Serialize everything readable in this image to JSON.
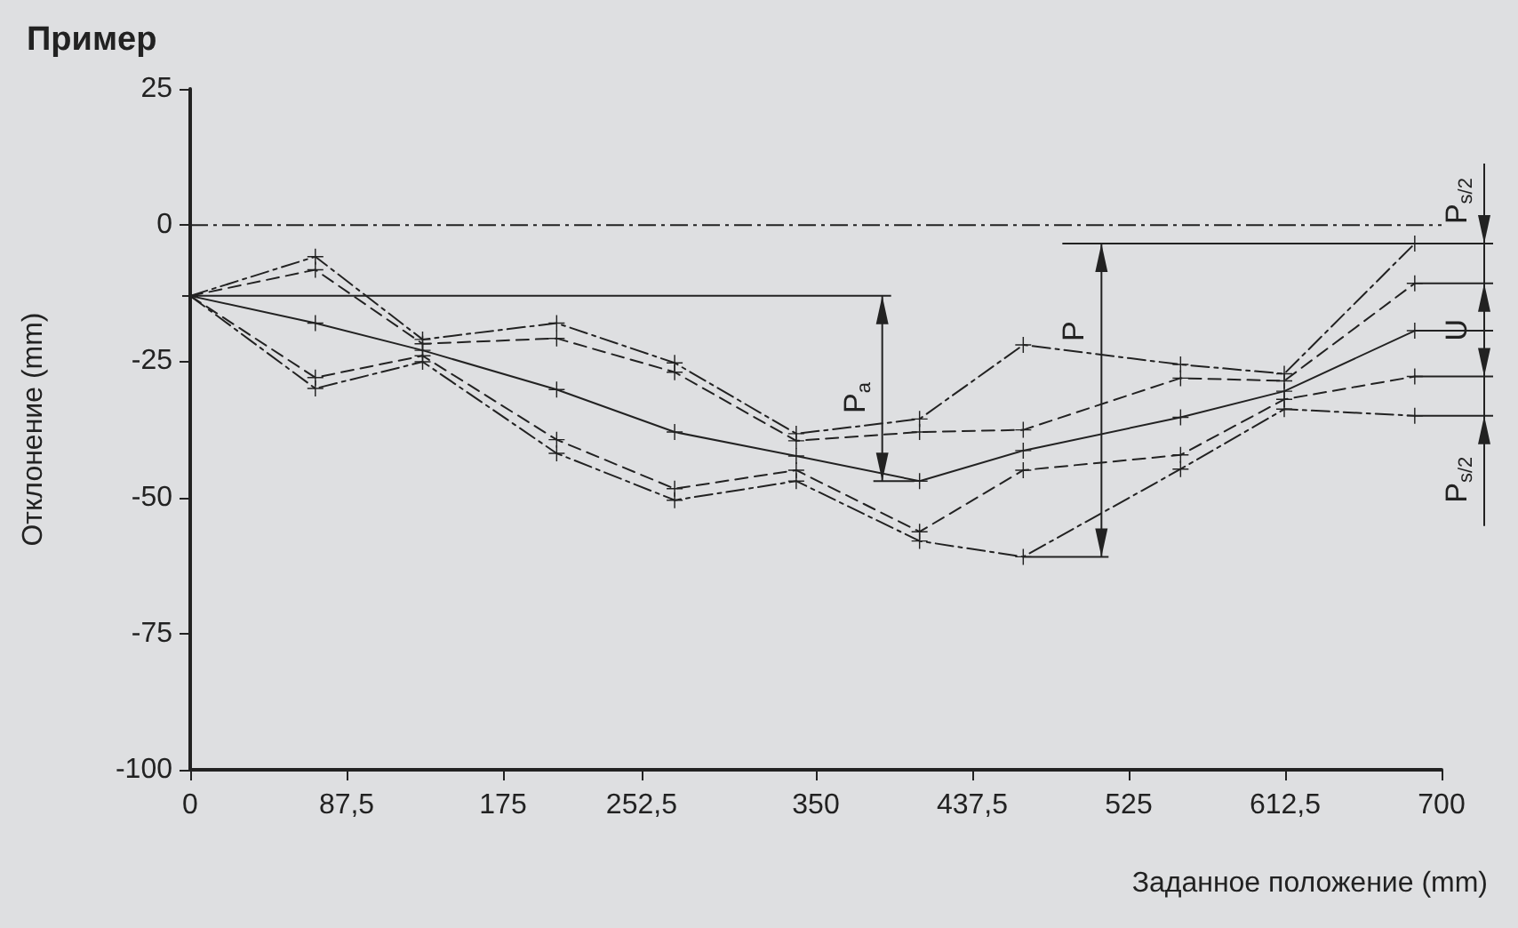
{
  "chart_data": {
    "type": "line",
    "title": "Пример",
    "xlabel": "Заданное положение (mm)",
    "ylabel": "Отклонение (mm)",
    "x": [
      0,
      70,
      130,
      205,
      271,
      339,
      408,
      466,
      554,
      612,
      685
    ],
    "series": [
      {
        "color": "#222222",
        "line_style": "dashdot",
        "values": [
          -13,
          -5.8,
          -21,
          -18,
          -25.3,
          -38.3,
          -35.6,
          -22,
          -25.6,
          -27.3,
          -3.4
        ]
      },
      {
        "color": "#222222",
        "line_style": "dashed",
        "values": [
          -13,
          -8.2,
          -21.8,
          -20.8,
          -27,
          -39.6,
          -38,
          -37.6,
          -28.1,
          -28.6,
          -10.7
        ]
      },
      {
        "color": "#222222",
        "line_style": "solid",
        "values": [
          -13,
          -18,
          -23,
          -30.2,
          -38,
          -42.4,
          -47,
          -41.4,
          -35.3,
          -30.5,
          -19.4
        ]
      },
      {
        "color": "#222222",
        "line_style": "dashed",
        "values": [
          -13,
          -28,
          -24,
          -39.4,
          -48.4,
          -45,
          -56.3,
          -45,
          -42.2,
          -32,
          -27.8
        ]
      },
      {
        "color": "#222222",
        "line_style": "dashdot",
        "values": [
          -13,
          -30,
          -25.1,
          -41.9,
          -50.5,
          -47,
          -58,
          -60.9,
          -44.8,
          -33.8,
          -35
        ]
      }
    ],
    "marker": "cross",
    "xlim": [
      0,
      700
    ],
    "xticks": [
      0,
      {
        "value": 87.5,
        "label": "87,5"
      },
      175,
      {
        "value": 252.5,
        "label": "252,5"
      },
      350,
      {
        "value": 437.5,
        "label": "437,5"
      },
      525,
      {
        "value": 612.5,
        "label": "612,5"
      },
      700
    ],
    "ylim": [
      -100,
      25
    ],
    "yticks": [
      -100,
      -75,
      -50,
      -25,
      0,
      25
    ],
    "ref_lines": [
      {
        "axis": "y",
        "value": 0,
        "line_style": "dashdot",
        "color": "#222222"
      }
    ],
    "annotations": [
      "P$_{a}$",
      "P",
      "U",
      "P$_{s/2}$",
      "P$_{s/2}$"
    ]
  }
}
